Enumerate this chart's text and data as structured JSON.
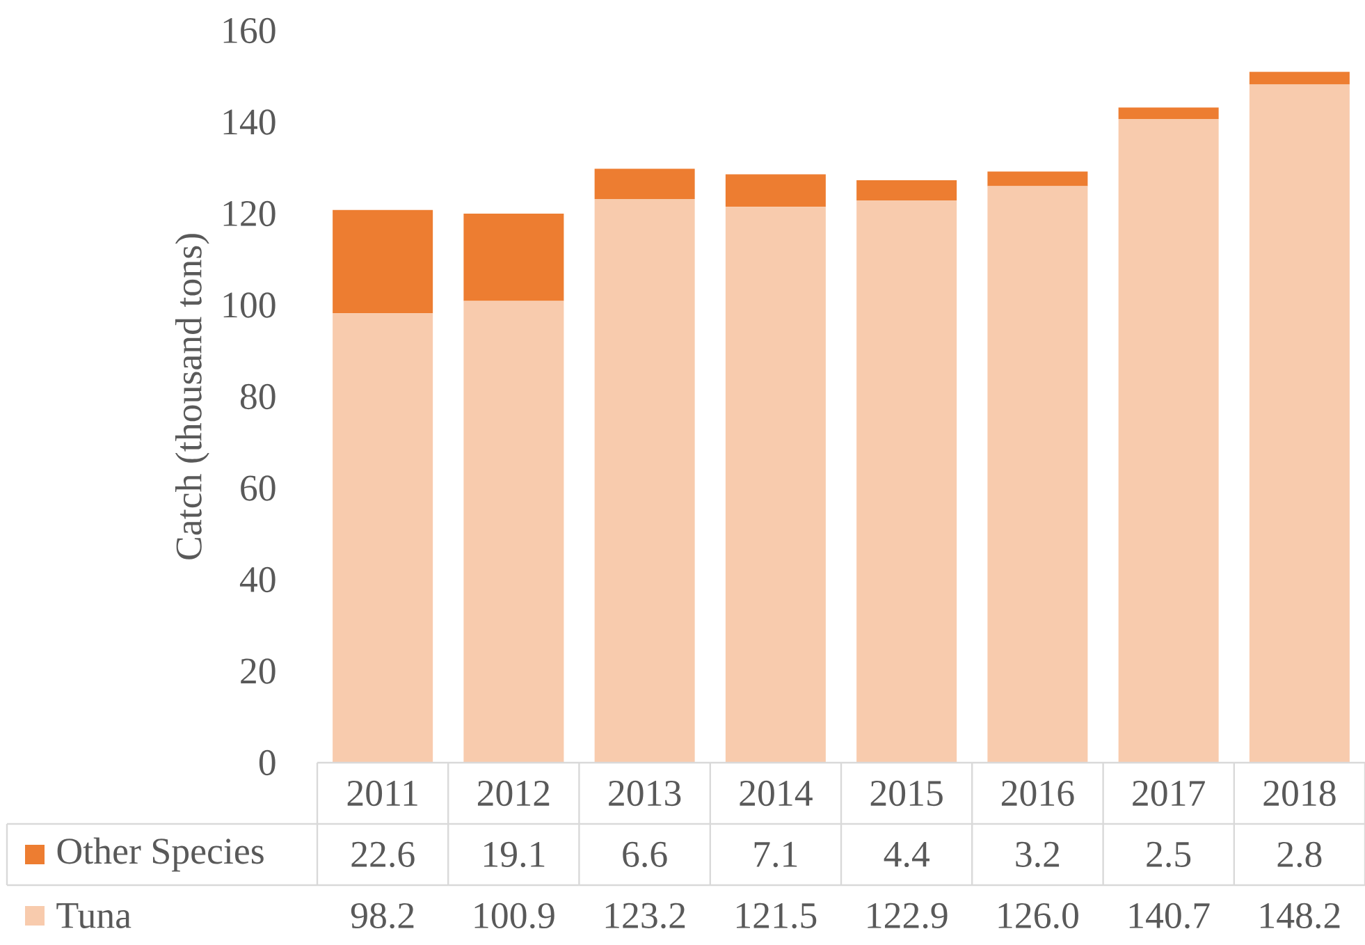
{
  "chart_data": {
    "type": "bar",
    "stacked": true,
    "ylabel": "Catch (thousand tons)",
    "categories": [
      "2011",
      "2012",
      "2013",
      "2014",
      "2015",
      "2016",
      "2017",
      "2018"
    ],
    "series": [
      {
        "name": "Tuna",
        "color": "#f8cbad",
        "values": [
          98.2,
          100.9,
          123.2,
          121.5,
          122.9,
          126.0,
          140.7,
          148.2
        ],
        "value_labels": [
          "98.2",
          "100.9",
          "123.2",
          "121.5",
          "122.9",
          "126.0",
          "140.7",
          "148.2"
        ]
      },
      {
        "name": "Other Species",
        "color": "#ed7d31",
        "values": [
          22.6,
          19.1,
          6.6,
          7.1,
          4.4,
          3.2,
          2.5,
          2.8
        ],
        "value_labels": [
          "22.6",
          "19.1",
          "6.6",
          "7.1",
          "4.4",
          "3.2",
          "2.5",
          "2.8"
        ]
      }
    ],
    "ylim": [
      0,
      160
    ],
    "yticks": [
      0,
      20,
      40,
      60,
      80,
      100,
      120,
      140,
      160
    ],
    "legend": "bottom left"
  }
}
